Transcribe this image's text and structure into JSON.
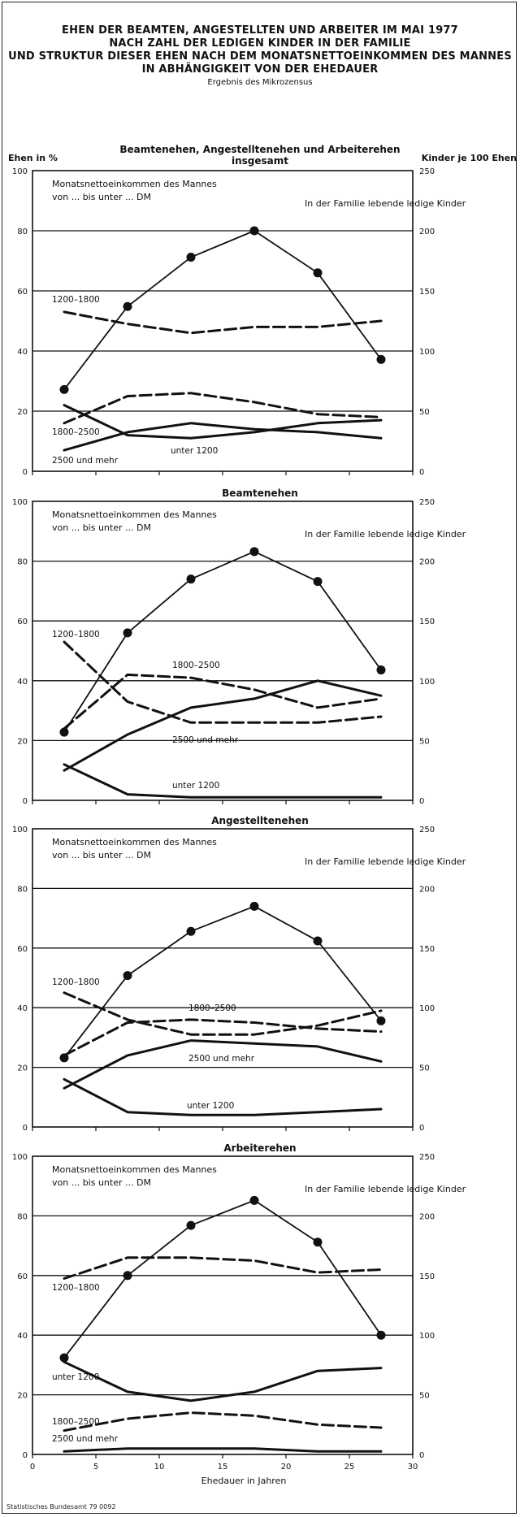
{
  "header": {
    "title_lines": [
      "EHEN DER BEAMTEN, ANGESTELLTEN UND ARBEITER IM MAI 1977",
      "NACH ZAHL DER LEDIGEN KINDER IN DER FAMILIE",
      "UND STRUKTUR DIESER EHEN NACH DEM MONATSNETTOEINKOMMEN DES MANNES",
      "IN ABHÄNGIGKEIT VON DER EHEDAUER"
    ],
    "subtitle": "Ergebnis des Mikrozensus"
  },
  "axis_texts": {
    "left_axis_title": "Ehen in %",
    "right_axis_title": "Kinder je 100 Ehen",
    "x_axis_title": "Ehedauer in Jahren",
    "income_legend_line1": "Monatsnettoeinkommen des Mannes",
    "income_legend_line2": "von ... bis unter ... DM"
  },
  "footer": {
    "source": "Statistisches Bundesamt 79 0092"
  },
  "chart_data": [
    {
      "type": "line",
      "title": "Beamtenehen, Angestelltenehen und Arbeiterehen insgesamt",
      "x": [
        2.5,
        7.5,
        12.5,
        17.5,
        22.5,
        27.5
      ],
      "xlim": [
        0,
        30
      ],
      "xticks": [
        0,
        5,
        10,
        15,
        20,
        25,
        30
      ],
      "ylim": [
        0,
        100
      ],
      "yticks": [
        0,
        20,
        40,
        60,
        80,
        100
      ],
      "y2lim": [
        0,
        250
      ],
      "y2ticks": [
        0,
        50,
        100,
        150,
        200,
        250
      ],
      "grid": true,
      "series": [
        {
          "name": "1200–1800",
          "axis": "left",
          "style": "dashed",
          "values": [
            53,
            49,
            46,
            48,
            48,
            50
          ]
        },
        {
          "name": "1800–2500",
          "axis": "left",
          "style": "dashed",
          "values": [
            16,
            25,
            26,
            23,
            19,
            18
          ]
        },
        {
          "name": "unter 1200",
          "axis": "left",
          "style": "solid",
          "values": [
            22,
            12,
            11,
            13,
            16,
            17
          ]
        },
        {
          "name": "2500 und mehr",
          "axis": "left",
          "style": "solid",
          "values": [
            7,
            13,
            16,
            14,
            13,
            11
          ]
        },
        {
          "name": "In der Familie lebende ledige Kinder",
          "axis": "right",
          "style": "markers",
          "values": [
            68,
            137,
            178,
            200,
            165,
            93
          ]
        }
      ]
    },
    {
      "type": "line",
      "title": "Beamtenehen",
      "x": [
        2.5,
        7.5,
        12.5,
        17.5,
        22.5,
        27.5
      ],
      "xlim": [
        0,
        30
      ],
      "xticks": [
        0,
        5,
        10,
        15,
        20,
        25,
        30
      ],
      "ylim": [
        0,
        100
      ],
      "yticks": [
        0,
        20,
        40,
        60,
        80,
        100
      ],
      "y2lim": [
        0,
        250
      ],
      "y2ticks": [
        0,
        50,
        100,
        150,
        200,
        250
      ],
      "grid": true,
      "series": [
        {
          "name": "1200–1800",
          "axis": "left",
          "style": "dashed",
          "values": [
            53,
            33,
            26,
            26,
            26,
            28
          ]
        },
        {
          "name": "1800–2500",
          "axis": "left",
          "style": "dashed",
          "values": [
            24,
            42,
            41,
            37,
            31,
            34
          ]
        },
        {
          "name": "2500 und mehr",
          "axis": "left",
          "style": "solid",
          "values": [
            10,
            22,
            31,
            34,
            40,
            35
          ]
        },
        {
          "name": "unter 1200",
          "axis": "left",
          "style": "solid",
          "values": [
            12,
            2,
            1,
            1,
            1,
            1
          ]
        },
        {
          "name": "In der Familie lebende ledige Kinder",
          "axis": "right",
          "style": "markers",
          "values": [
            57,
            140,
            185,
            208,
            183,
            109
          ]
        }
      ]
    },
    {
      "type": "line",
      "title": "Angestelltenehen",
      "x": [
        2.5,
        7.5,
        12.5,
        17.5,
        22.5,
        27.5
      ],
      "xlim": [
        0,
        30
      ],
      "xticks": [
        0,
        5,
        10,
        15,
        20,
        25,
        30
      ],
      "ylim": [
        0,
        100
      ],
      "yticks": [
        0,
        20,
        40,
        60,
        80,
        100
      ],
      "y2lim": [
        0,
        250
      ],
      "y2ticks": [
        0,
        50,
        100,
        150,
        200,
        250
      ],
      "grid": true,
      "series": [
        {
          "name": "1200–1800",
          "axis": "left",
          "style": "dashed",
          "values": [
            45,
            36,
            31,
            31,
            34,
            39
          ]
        },
        {
          "name": "1800–2500",
          "axis": "left",
          "style": "dashed",
          "values": [
            24,
            35,
            36,
            35,
            33,
            32
          ]
        },
        {
          "name": "2500 und mehr",
          "axis": "left",
          "style": "solid",
          "values": [
            13,
            24,
            29,
            28,
            27,
            22
          ]
        },
        {
          "name": "unter 1200",
          "axis": "left",
          "style": "solid",
          "values": [
            16,
            5,
            4,
            4,
            5,
            6
          ]
        },
        {
          "name": "In der Familie lebende ledige Kinder",
          "axis": "right",
          "style": "markers",
          "values": [
            58,
            127,
            164,
            185,
            156,
            89
          ]
        }
      ]
    },
    {
      "type": "line",
      "title": "Arbeiterehen",
      "x": [
        2.5,
        7.5,
        12.5,
        17.5,
        22.5,
        27.5
      ],
      "xlim": [
        0,
        30
      ],
      "xticks": [
        0,
        5,
        10,
        15,
        20,
        25,
        30
      ],
      "ylim": [
        0,
        100
      ],
      "yticks": [
        0,
        20,
        40,
        60,
        80,
        100
      ],
      "y2lim": [
        0,
        250
      ],
      "y2ticks": [
        0,
        50,
        100,
        150,
        200,
        250
      ],
      "grid": true,
      "series": [
        {
          "name": "1200–1800",
          "axis": "left",
          "style": "dashed",
          "values": [
            59,
            66,
            66,
            65,
            61,
            62
          ]
        },
        {
          "name": "unter 1200",
          "axis": "left",
          "style": "solid",
          "values": [
            31,
            21,
            18,
            21,
            28,
            29
          ]
        },
        {
          "name": "1800–2500",
          "axis": "left",
          "style": "dashed",
          "values": [
            8,
            12,
            14,
            13,
            10,
            9
          ]
        },
        {
          "name": "2500 und mehr",
          "axis": "left",
          "style": "solid",
          "values": [
            1,
            2,
            2,
            2,
            1,
            1
          ]
        },
        {
          "name": "In der Familie lebende ledige Kinder",
          "axis": "right",
          "style": "markers",
          "values": [
            81,
            150,
            192,
            213,
            178,
            100
          ]
        }
      ]
    }
  ]
}
